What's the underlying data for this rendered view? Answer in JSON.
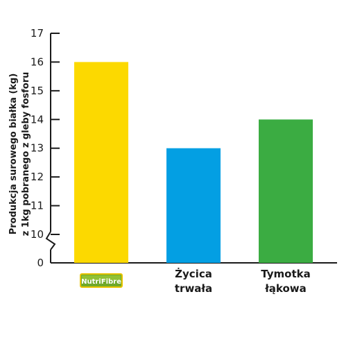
{
  "chart_data": {
    "type": "bar",
    "ylabel": [
      "Produkcja surowego białka (kg)",
      "z 1kg pobranego z gleby fosforu"
    ],
    "ylim": [
      10,
      17
    ],
    "yticks": [
      17,
      16,
      15,
      14,
      13,
      12,
      11,
      10,
      0
    ],
    "axis_break": true,
    "categories": [
      {
        "label_lines": [],
        "logo": "NutriFibre",
        "value": 16,
        "color": "#FCD900"
      },
      {
        "label_lines": [
          "Życica",
          "trwała"
        ],
        "value": 13,
        "color": "#039FE3"
      },
      {
        "label_lines": [
          "Tymotka",
          "łąkowa"
        ],
        "value": 14,
        "color": "#3BAC42"
      }
    ],
    "grid": false,
    "legend": "none"
  },
  "logo": {
    "name": "nutrifibre-logo",
    "text": "NutriFibre"
  }
}
